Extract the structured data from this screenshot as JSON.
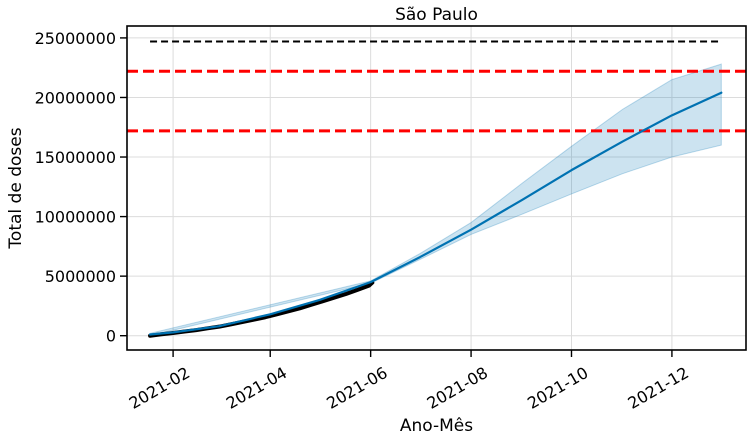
{
  "chart_data": {
    "type": "line",
    "title": "São Paulo",
    "xlabel": "Ano-Mês",
    "ylabel": "Total de doses",
    "xlim": [
      "2021-01-04",
      "2022-01-15"
    ],
    "ylim": [
      -1200000,
      26000000
    ],
    "grid": true,
    "x_ticks": [
      {
        "date": "2021-02-01",
        "label": "2021-02"
      },
      {
        "date": "2021-04-01",
        "label": "2021-04"
      },
      {
        "date": "2021-06-01",
        "label": "2021-06"
      },
      {
        "date": "2021-08-01",
        "label": "2021-08"
      },
      {
        "date": "2021-10-01",
        "label": "2021-10"
      },
      {
        "date": "2021-12-01",
        "label": "2021-12"
      }
    ],
    "y_ticks": [
      {
        "value": 0,
        "label": "0"
      },
      {
        "value": 5000000,
        "label": "5000000"
      },
      {
        "value": 10000000,
        "label": "10000000"
      },
      {
        "value": 15000000,
        "label": "15000000"
      },
      {
        "value": 20000000,
        "label": "20000000"
      },
      {
        "value": 25000000,
        "label": "25000000"
      }
    ],
    "reference_lines": [
      {
        "value": 24700000,
        "color": "#000000",
        "style": "dashed",
        "x_start": "2021-01-18",
        "x_end": "2021-12-31"
      },
      {
        "value": 22200000,
        "color": "#ff0000",
        "style": "dashed"
      },
      {
        "value": 17200000,
        "color": "#ff0000",
        "style": "dashed"
      }
    ],
    "series": [
      {
        "kind": "observed",
        "color": "#000000",
        "points": [
          [
            "2021-01-18",
            0
          ],
          [
            "2021-01-25",
            120000
          ],
          [
            "2021-02-01",
            230000
          ],
          [
            "2021-02-08",
            350000
          ],
          [
            "2021-02-15",
            470000
          ],
          [
            "2021-02-22",
            620000
          ],
          [
            "2021-03-01",
            760000
          ],
          [
            "2021-03-08",
            950000
          ],
          [
            "2021-03-15",
            1150000
          ],
          [
            "2021-03-22",
            1350000
          ],
          [
            "2021-03-29",
            1550000
          ],
          [
            "2021-04-05",
            1800000
          ],
          [
            "2021-04-12",
            2050000
          ],
          [
            "2021-04-19",
            2300000
          ],
          [
            "2021-04-26",
            2600000
          ],
          [
            "2021-05-03",
            2900000
          ],
          [
            "2021-05-10",
            3200000
          ],
          [
            "2021-05-17",
            3500000
          ],
          [
            "2021-05-24",
            3850000
          ],
          [
            "2021-05-31",
            4200000
          ],
          [
            "2021-06-02",
            4450000
          ]
        ]
      },
      {
        "kind": "forecast",
        "color": "#0072B2",
        "points": [
          [
            "2021-01-18",
            100000
          ],
          [
            "2021-02-01",
            280000
          ],
          [
            "2021-03-01",
            800000
          ],
          [
            "2021-04-01",
            1800000
          ],
          [
            "2021-05-01",
            3000000
          ],
          [
            "2021-06-01",
            4500000
          ],
          [
            "2021-07-01",
            6600000
          ],
          [
            "2021-08-01",
            8900000
          ],
          [
            "2021-09-01",
            11400000
          ],
          [
            "2021-10-01",
            13900000
          ],
          [
            "2021-11-01",
            16300000
          ],
          [
            "2021-12-01",
            18500000
          ],
          [
            "2021-12-31",
            20400000
          ]
        ]
      }
    ],
    "uncertainty_band": {
      "color": "#0072B2",
      "points": [
        [
          "2021-01-18",
          0,
          200000
        ],
        [
          "2021-06-01",
          4400000,
          4600000
        ],
        [
          "2021-07-01",
          6400000,
          6900000
        ],
        [
          "2021-08-01",
          8500000,
          9500000
        ],
        [
          "2021-09-01",
          10200000,
          12800000
        ],
        [
          "2021-10-01",
          11900000,
          15900000
        ],
        [
          "2021-11-01",
          13600000,
          19000000
        ],
        [
          "2021-12-01",
          15000000,
          21500000
        ],
        [
          "2021-12-31",
          16000000,
          22800000
        ]
      ]
    }
  }
}
